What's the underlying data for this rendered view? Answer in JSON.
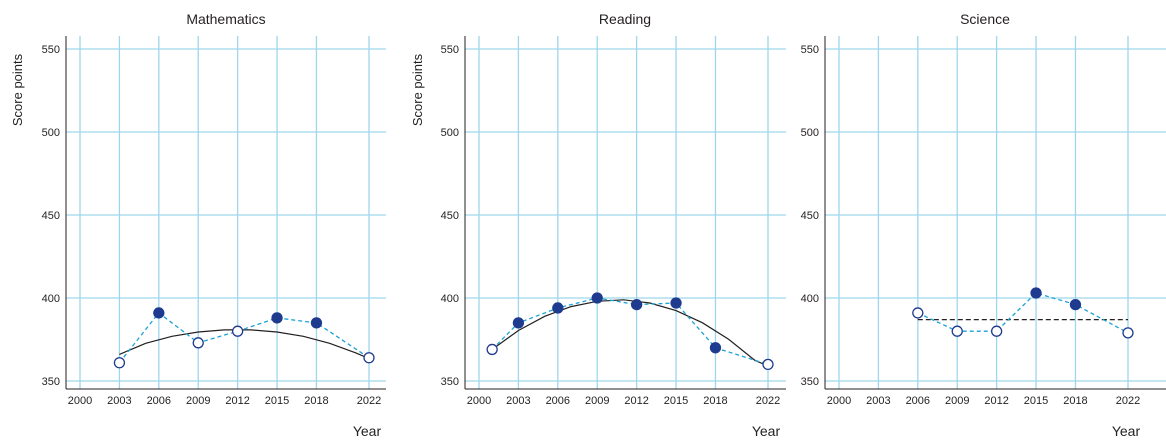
{
  "colors": {
    "grid": "#9fd6ec",
    "trend_dashed": "#1ba3d3",
    "marker_fill": "#1f3b8f",
    "marker_stroke": "#1f3b8f",
    "marker_open_fill": "#ffffff",
    "fit_line": "#231f20",
    "axis": "#231f20",
    "text": "#231f20"
  },
  "chart_data": [
    {
      "type": "line",
      "title": "Mathematics",
      "ylabel": "Score points",
      "xlabel": "Year",
      "ylim": [
        345,
        555
      ],
      "yticks": [
        350,
        400,
        450,
        500,
        550
      ],
      "xticks": [
        2000,
        2003,
        2006,
        2009,
        2012,
        2015,
        2018,
        2022
      ],
      "grid": true,
      "series": [
        {
          "x": [
            2003,
            2006,
            2009,
            2012,
            2015,
            2018,
            2022
          ],
          "values": [
            361,
            391,
            373,
            380,
            388,
            385,
            364
          ],
          "filled": [
            false,
            true,
            false,
            false,
            true,
            true,
            false
          ]
        }
      ],
      "trendline": {
        "kind": "curve",
        "x": [
          2003,
          2005,
          2007,
          2009,
          2011,
          2013,
          2015,
          2017,
          2019,
          2021,
          2022
        ],
        "values": [
          366,
          372.7,
          376.9,
          379.5,
          380.8,
          380.8,
          379.5,
          376.9,
          372.7,
          366.9,
          363.5
        ]
      }
    },
    {
      "type": "line",
      "title": "Reading",
      "ylabel": "Score points",
      "xlabel": "Year",
      "ylim": [
        345,
        555
      ],
      "yticks": [
        350,
        400,
        450,
        500,
        550
      ],
      "xticks": [
        2000,
        2003,
        2006,
        2009,
        2012,
        2015,
        2018,
        2022
      ],
      "grid": true,
      "series": [
        {
          "x": [
            2001,
            2003,
            2006,
            2009,
            2012,
            2015,
            2018,
            2022
          ],
          "values": [
            369,
            385,
            394,
            400,
            396,
            397,
            370,
            360
          ],
          "filled": [
            false,
            true,
            true,
            true,
            true,
            true,
            true,
            false
          ]
        }
      ],
      "trendline": {
        "kind": "curve",
        "x": [
          2001,
          2003,
          2005,
          2007,
          2009,
          2011,
          2013,
          2015,
          2017,
          2019,
          2021,
          2022
        ],
        "values": [
          369,
          380.4,
          389,
          394.8,
          398,
          398.9,
          397,
          392.4,
          385.1,
          375.1,
          362.5,
          359
        ]
      }
    },
    {
      "type": "line",
      "title": "Science",
      "ylabel": "",
      "xlabel": "Year",
      "ylim": [
        345,
        555
      ],
      "yticks": [
        350,
        400,
        450,
        500,
        550
      ],
      "xticks": [
        2000,
        2003,
        2006,
        2009,
        2012,
        2015,
        2018,
        2022
      ],
      "grid": true,
      "series": [
        {
          "x": [
            2006,
            2009,
            2012,
            2015,
            2018,
            2022
          ],
          "values": [
            391,
            380,
            380,
            403,
            396,
            379
          ],
          "filled": [
            false,
            false,
            false,
            true,
            true,
            false
          ]
        }
      ],
      "trendline": {
        "kind": "flat",
        "x": [
          2006,
          2022
        ],
        "values": [
          387,
          387
        ]
      }
    }
  ]
}
